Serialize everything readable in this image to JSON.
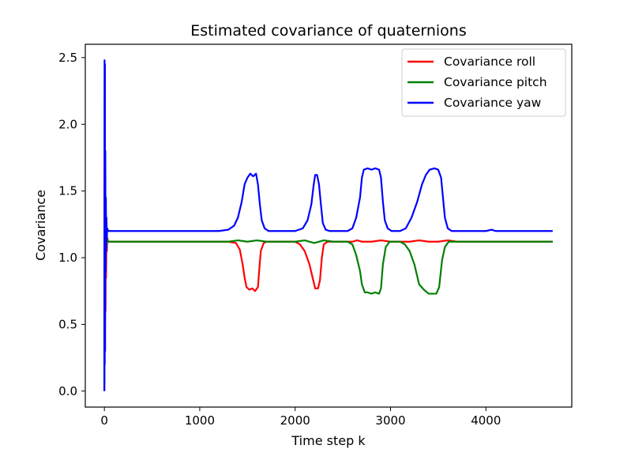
{
  "chart_data": {
    "type": "line",
    "title": "Estimated covariance of quaternions",
    "xlabel": "Time step k",
    "ylabel": "Covariance",
    "xlim": [
      -200,
      4900
    ],
    "ylim": [
      -0.12,
      2.6
    ],
    "xticks": [
      0,
      1000,
      2000,
      3000,
      4000
    ],
    "yticks": [
      0.0,
      0.5,
      1.0,
      1.5,
      2.0,
      2.5
    ],
    "xtick_labels": [
      "0",
      "1000",
      "2000",
      "3000",
      "4000"
    ],
    "ytick_labels": [
      "0.0",
      "0.5",
      "1.0",
      "1.5",
      "2.0",
      "2.5"
    ],
    "grid": false,
    "legend_position": "top-right",
    "series": [
      {
        "name": "Covariance roll",
        "color": "#ff0000",
        "points": [
          [
            0,
            0.0
          ],
          [
            3,
            2.35
          ],
          [
            6,
            0.4
          ],
          [
            9,
            1.7
          ],
          [
            12,
            0.6
          ],
          [
            15,
            1.35
          ],
          [
            18,
            0.85
          ],
          [
            22,
            1.2
          ],
          [
            26,
            1.05
          ],
          [
            30,
            1.15
          ],
          [
            40,
            1.12
          ],
          [
            300,
            1.12
          ],
          [
            800,
            1.12
          ],
          [
            1300,
            1.12
          ],
          [
            1380,
            1.11
          ],
          [
            1420,
            1.06
          ],
          [
            1450,
            0.95
          ],
          [
            1470,
            0.85
          ],
          [
            1490,
            0.78
          ],
          [
            1520,
            0.76
          ],
          [
            1550,
            0.77
          ],
          [
            1580,
            0.75
          ],
          [
            1610,
            0.78
          ],
          [
            1625,
            0.92
          ],
          [
            1640,
            1.05
          ],
          [
            1670,
            1.11
          ],
          [
            1700,
            1.12
          ],
          [
            1900,
            1.12
          ],
          [
            2000,
            1.12
          ],
          [
            2050,
            1.1
          ],
          [
            2100,
            1.05
          ],
          [
            2150,
            0.95
          ],
          [
            2190,
            0.83
          ],
          [
            2210,
            0.77
          ],
          [
            2240,
            0.77
          ],
          [
            2260,
            0.83
          ],
          [
            2280,
            1.0
          ],
          [
            2300,
            1.1
          ],
          [
            2340,
            1.12
          ],
          [
            2600,
            1.12
          ],
          [
            2650,
            1.13
          ],
          [
            2700,
            1.12
          ],
          [
            2800,
            1.12
          ],
          [
            2900,
            1.13
          ],
          [
            3000,
            1.12
          ],
          [
            3200,
            1.12
          ],
          [
            3300,
            1.13
          ],
          [
            3400,
            1.12
          ],
          [
            3500,
            1.12
          ],
          [
            3600,
            1.13
          ],
          [
            3700,
            1.12
          ],
          [
            4000,
            1.12
          ],
          [
            4700,
            1.12
          ]
        ]
      },
      {
        "name": "Covariance pitch",
        "color": "#008000",
        "points": [
          [
            0,
            0.05
          ],
          [
            3,
            1.6
          ],
          [
            6,
            0.5
          ],
          [
            9,
            1.3
          ],
          [
            12,
            0.9
          ],
          [
            16,
            1.18
          ],
          [
            20,
            1.08
          ],
          [
            26,
            1.14
          ],
          [
            35,
            1.12
          ],
          [
            300,
            1.12
          ],
          [
            1300,
            1.12
          ],
          [
            1400,
            1.13
          ],
          [
            1500,
            1.12
          ],
          [
            1600,
            1.13
          ],
          [
            1700,
            1.12
          ],
          [
            2000,
            1.12
          ],
          [
            2100,
            1.13
          ],
          [
            2200,
            1.11
          ],
          [
            2300,
            1.13
          ],
          [
            2400,
            1.12
          ],
          [
            2550,
            1.12
          ],
          [
            2600,
            1.1
          ],
          [
            2640,
            1.02
          ],
          [
            2680,
            0.9
          ],
          [
            2700,
            0.8
          ],
          [
            2730,
            0.74
          ],
          [
            2760,
            0.74
          ],
          [
            2800,
            0.73
          ],
          [
            2840,
            0.74
          ],
          [
            2880,
            0.73
          ],
          [
            2900,
            0.77
          ],
          [
            2920,
            0.95
          ],
          [
            2950,
            1.08
          ],
          [
            2990,
            1.12
          ],
          [
            3100,
            1.12
          ],
          [
            3150,
            1.1
          ],
          [
            3200,
            1.05
          ],
          [
            3250,
            0.95
          ],
          [
            3300,
            0.8
          ],
          [
            3350,
            0.76
          ],
          [
            3400,
            0.73
          ],
          [
            3450,
            0.73
          ],
          [
            3480,
            0.73
          ],
          [
            3510,
            0.78
          ],
          [
            3540,
            0.98
          ],
          [
            3570,
            1.08
          ],
          [
            3610,
            1.12
          ],
          [
            4000,
            1.12
          ],
          [
            4700,
            1.12
          ]
        ]
      },
      {
        "name": "Covariance yaw",
        "color": "#0000ff",
        "points": [
          [
            0,
            0.0
          ],
          [
            2,
            2.48
          ],
          [
            4,
            0.2
          ],
          [
            6,
            2.45
          ],
          [
            8,
            0.3
          ],
          [
            10,
            1.8
          ],
          [
            13,
            0.9
          ],
          [
            16,
            1.45
          ],
          [
            19,
            1.05
          ],
          [
            22,
            1.3
          ],
          [
            26,
            1.15
          ],
          [
            30,
            1.22
          ],
          [
            40,
            1.2
          ],
          [
            300,
            1.2
          ],
          [
            800,
            1.2
          ],
          [
            1200,
            1.2
          ],
          [
            1300,
            1.21
          ],
          [
            1360,
            1.24
          ],
          [
            1400,
            1.3
          ],
          [
            1440,
            1.42
          ],
          [
            1470,
            1.55
          ],
          [
            1500,
            1.6
          ],
          [
            1530,
            1.63
          ],
          [
            1560,
            1.61
          ],
          [
            1590,
            1.63
          ],
          [
            1610,
            1.55
          ],
          [
            1630,
            1.4
          ],
          [
            1650,
            1.28
          ],
          [
            1680,
            1.22
          ],
          [
            1720,
            1.2
          ],
          [
            2000,
            1.2
          ],
          [
            2080,
            1.22
          ],
          [
            2130,
            1.28
          ],
          [
            2170,
            1.4
          ],
          [
            2195,
            1.55
          ],
          [
            2210,
            1.62
          ],
          [
            2230,
            1.62
          ],
          [
            2250,
            1.55
          ],
          [
            2270,
            1.4
          ],
          [
            2290,
            1.26
          ],
          [
            2320,
            1.21
          ],
          [
            2360,
            1.2
          ],
          [
            2550,
            1.2
          ],
          [
            2600,
            1.22
          ],
          [
            2640,
            1.3
          ],
          [
            2680,
            1.45
          ],
          [
            2700,
            1.6
          ],
          [
            2720,
            1.66
          ],
          [
            2760,
            1.67
          ],
          [
            2800,
            1.66
          ],
          [
            2840,
            1.67
          ],
          [
            2880,
            1.66
          ],
          [
            2900,
            1.6
          ],
          [
            2920,
            1.42
          ],
          [
            2940,
            1.28
          ],
          [
            2970,
            1.22
          ],
          [
            3010,
            1.2
          ],
          [
            3100,
            1.2
          ],
          [
            3160,
            1.22
          ],
          [
            3220,
            1.3
          ],
          [
            3280,
            1.42
          ],
          [
            3330,
            1.55
          ],
          [
            3370,
            1.62
          ],
          [
            3410,
            1.66
          ],
          [
            3460,
            1.67
          ],
          [
            3500,
            1.66
          ],
          [
            3530,
            1.6
          ],
          [
            3550,
            1.45
          ],
          [
            3570,
            1.3
          ],
          [
            3600,
            1.22
          ],
          [
            3640,
            1.2
          ],
          [
            4000,
            1.2
          ],
          [
            4060,
            1.21
          ],
          [
            4100,
            1.2
          ],
          [
            4700,
            1.2
          ]
        ]
      }
    ]
  }
}
